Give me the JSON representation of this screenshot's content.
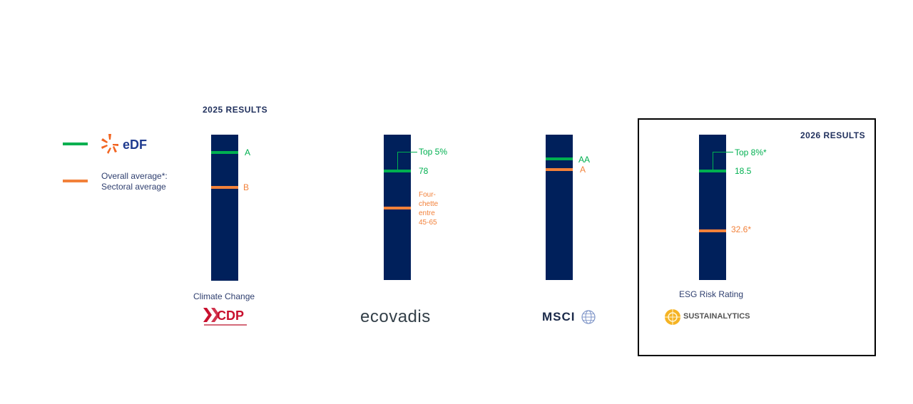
{
  "header_2025": "2025 RESULTS",
  "header_2026": "2026 RESULTS",
  "legend": {
    "edf_logo_text": "eDF",
    "average_label": "Overall average*:\nSectoral average",
    "edf_color": "#00b050",
    "average_color": "#f2813a"
  },
  "chart_data": [
    {
      "type": "bar",
      "provider": "CDP",
      "category": "Climate Change",
      "edf_rating": "A",
      "average_rating": "B",
      "bar_color": "#00205b",
      "edf_color": "#00b050",
      "average_color": "#f2813a"
    },
    {
      "type": "bar",
      "provider": "EcoVadis",
      "edf_rank": "Top 5%",
      "edf_score": "78",
      "average_range": "Four-chette entre 45-65",
      "bar_color": "#00205b"
    },
    {
      "type": "bar",
      "provider": "MSCI",
      "edf_rating": "AA",
      "average_rating": "A",
      "bar_color": "#00205b"
    },
    {
      "type": "bar",
      "provider": "Sustainalytics",
      "category": "ESG Risk Rating",
      "edf_rank": "Top 8%*",
      "edf_score": "18.5",
      "average_score": "32.6*",
      "bar_color": "#00205b"
    }
  ],
  "logos": {
    "cdp": "CDP",
    "ecovadis": "ecovadis",
    "msci": "MSCI",
    "sustainalytics": "SUSTAINALYTICS"
  }
}
